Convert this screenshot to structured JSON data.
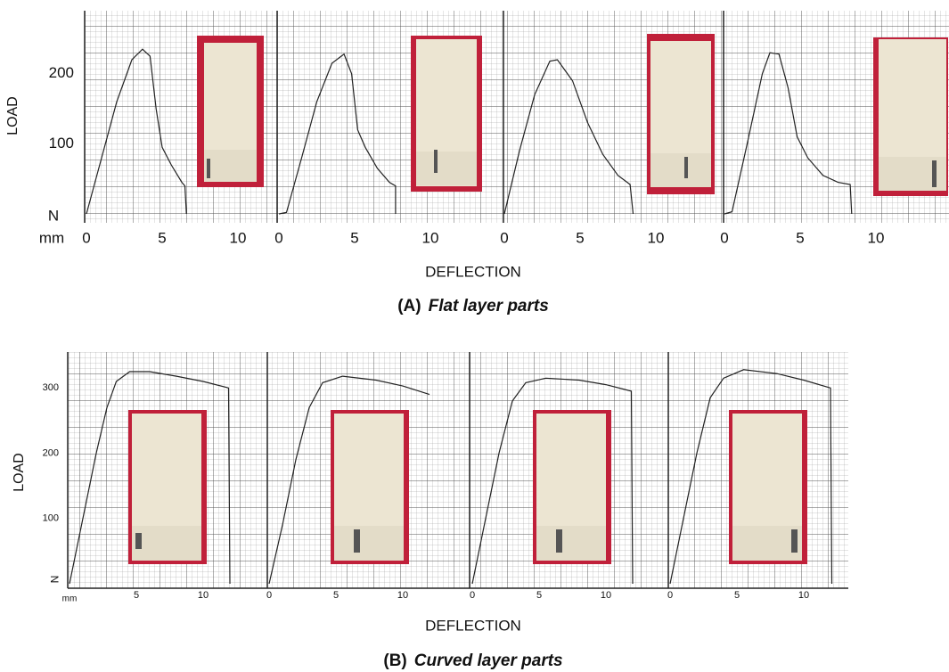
{
  "chart_data": [
    {
      "type": "line",
      "label": "(A)",
      "caption": "Flat layer parts",
      "ylabel": "LOAD",
      "xlabel": "DEFLECTION",
      "yunit": "N",
      "xunit": "mm",
      "color": "#222222",
      "ylim": [
        0,
        290
      ],
      "yticks": [
        100,
        200
      ],
      "xlim": [
        0,
        15
      ],
      "series": [
        {
          "x": [
            0,
            1,
            2,
            3,
            3.7,
            4.2,
            4.6,
            5,
            5.6,
            6.3,
            6.5,
            6.6
          ],
          "values": [
            0,
            80,
            160,
            220,
            235,
            225,
            150,
            95,
            70,
            45,
            40,
            0
          ],
          "xticks": [
            0,
            5,
            10
          ]
        },
        {
          "x": [
            0,
            0.5,
            1.5,
            2.5,
            3.5,
            4.3,
            4.8,
            5.2,
            5.7,
            6.5,
            7.3,
            7.7,
            7.7
          ],
          "values": [
            0,
            2,
            80,
            160,
            215,
            228,
            200,
            120,
            95,
            65,
            45,
            40,
            0
          ],
          "xticks": [
            0,
            5,
            10
          ]
        },
        {
          "x": [
            0,
            1,
            2,
            3,
            3.5,
            4.5,
            5.5,
            6.5,
            7.5,
            8.3,
            8.5
          ],
          "values": [
            0,
            90,
            170,
            218,
            220,
            190,
            130,
            85,
            55,
            42,
            0
          ],
          "xticks": [
            0,
            5,
            10
          ]
        },
        {
          "x": [
            0,
            0.5,
            1.5,
            2.5,
            3,
            3.6,
            4.2,
            4.8,
            5.5,
            6.5,
            7.5,
            8.3,
            8.4
          ],
          "values": [
            0,
            3,
            100,
            200,
            230,
            228,
            180,
            110,
            80,
            55,
            45,
            42,
            0
          ],
          "xticks": [
            0,
            5,
            10
          ]
        }
      ]
    },
    {
      "type": "line",
      "label": "(B)",
      "caption": "Curved layer parts",
      "ylabel": "LOAD",
      "xlabel": "DEFLECTION",
      "yunit": "N",
      "xunit": "mm",
      "color": "#222222",
      "ylim": [
        0,
        355
      ],
      "yticks": [
        100,
        200,
        300
      ],
      "xlim": [
        0,
        14.5
      ],
      "series": [
        {
          "x": [
            0,
            1,
            2,
            2.8,
            3.5,
            4.5,
            6,
            8,
            10,
            11.9,
            12
          ],
          "values": [
            0,
            100,
            200,
            270,
            310,
            325,
            325,
            318,
            310,
            300,
            0
          ],
          "xticks": [
            5,
            10
          ]
        },
        {
          "x": [
            0,
            1,
            2,
            3,
            4,
            5.5,
            8,
            10,
            12
          ],
          "values": [
            0,
            90,
            190,
            270,
            308,
            318,
            312,
            303,
            290
          ],
          "xticks": [
            0,
            5,
            10
          ]
        },
        {
          "x": [
            0,
            1,
            2,
            3,
            4,
            5.5,
            8,
            10,
            11.9,
            12
          ],
          "values": [
            0,
            100,
            200,
            280,
            308,
            315,
            312,
            305,
            295,
            0
          ],
          "xticks": [
            0,
            5,
            10
          ]
        },
        {
          "x": [
            0,
            1,
            2,
            3,
            4,
            5.5,
            8,
            10,
            12,
            12.1
          ],
          "values": [
            0,
            100,
            200,
            285,
            315,
            328,
            322,
            312,
            300,
            0
          ],
          "xticks": [
            0,
            5,
            10
          ]
        }
      ]
    }
  ]
}
